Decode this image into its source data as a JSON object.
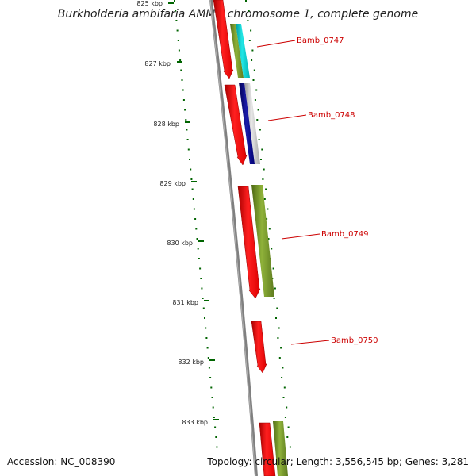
{
  "title": "Burkholderia ambifaria AMMD chromosome 1, complete genome",
  "footer": {
    "accession": "Accession: NC_008390",
    "topology": "Topology: circular; Length: 3,556,545 bp; Genes: 3,281"
  },
  "ruler": [
    {
      "label": "825 kbp"
    },
    {
      "label": "827 kbp"
    },
    {
      "label": "828 kbp"
    },
    {
      "label": "829 kbp"
    },
    {
      "label": "830 kbp"
    },
    {
      "label": "831 kbp"
    },
    {
      "label": "832 kbp"
    },
    {
      "label": "833 kbp"
    }
  ],
  "genes": [
    {
      "label": "Bamb_0747"
    },
    {
      "label": "Bamb_0748"
    },
    {
      "label": "Bamb_0749"
    },
    {
      "label": "Bamb_0750"
    }
  ],
  "colors": {
    "cds": "#ff0000",
    "green": "#6b8e23",
    "cyan": "#00cccc",
    "navy": "#000080",
    "silver": "#c0c0c0",
    "backbone": "#808080",
    "ticks": "#006400",
    "label": "#cc0000"
  }
}
